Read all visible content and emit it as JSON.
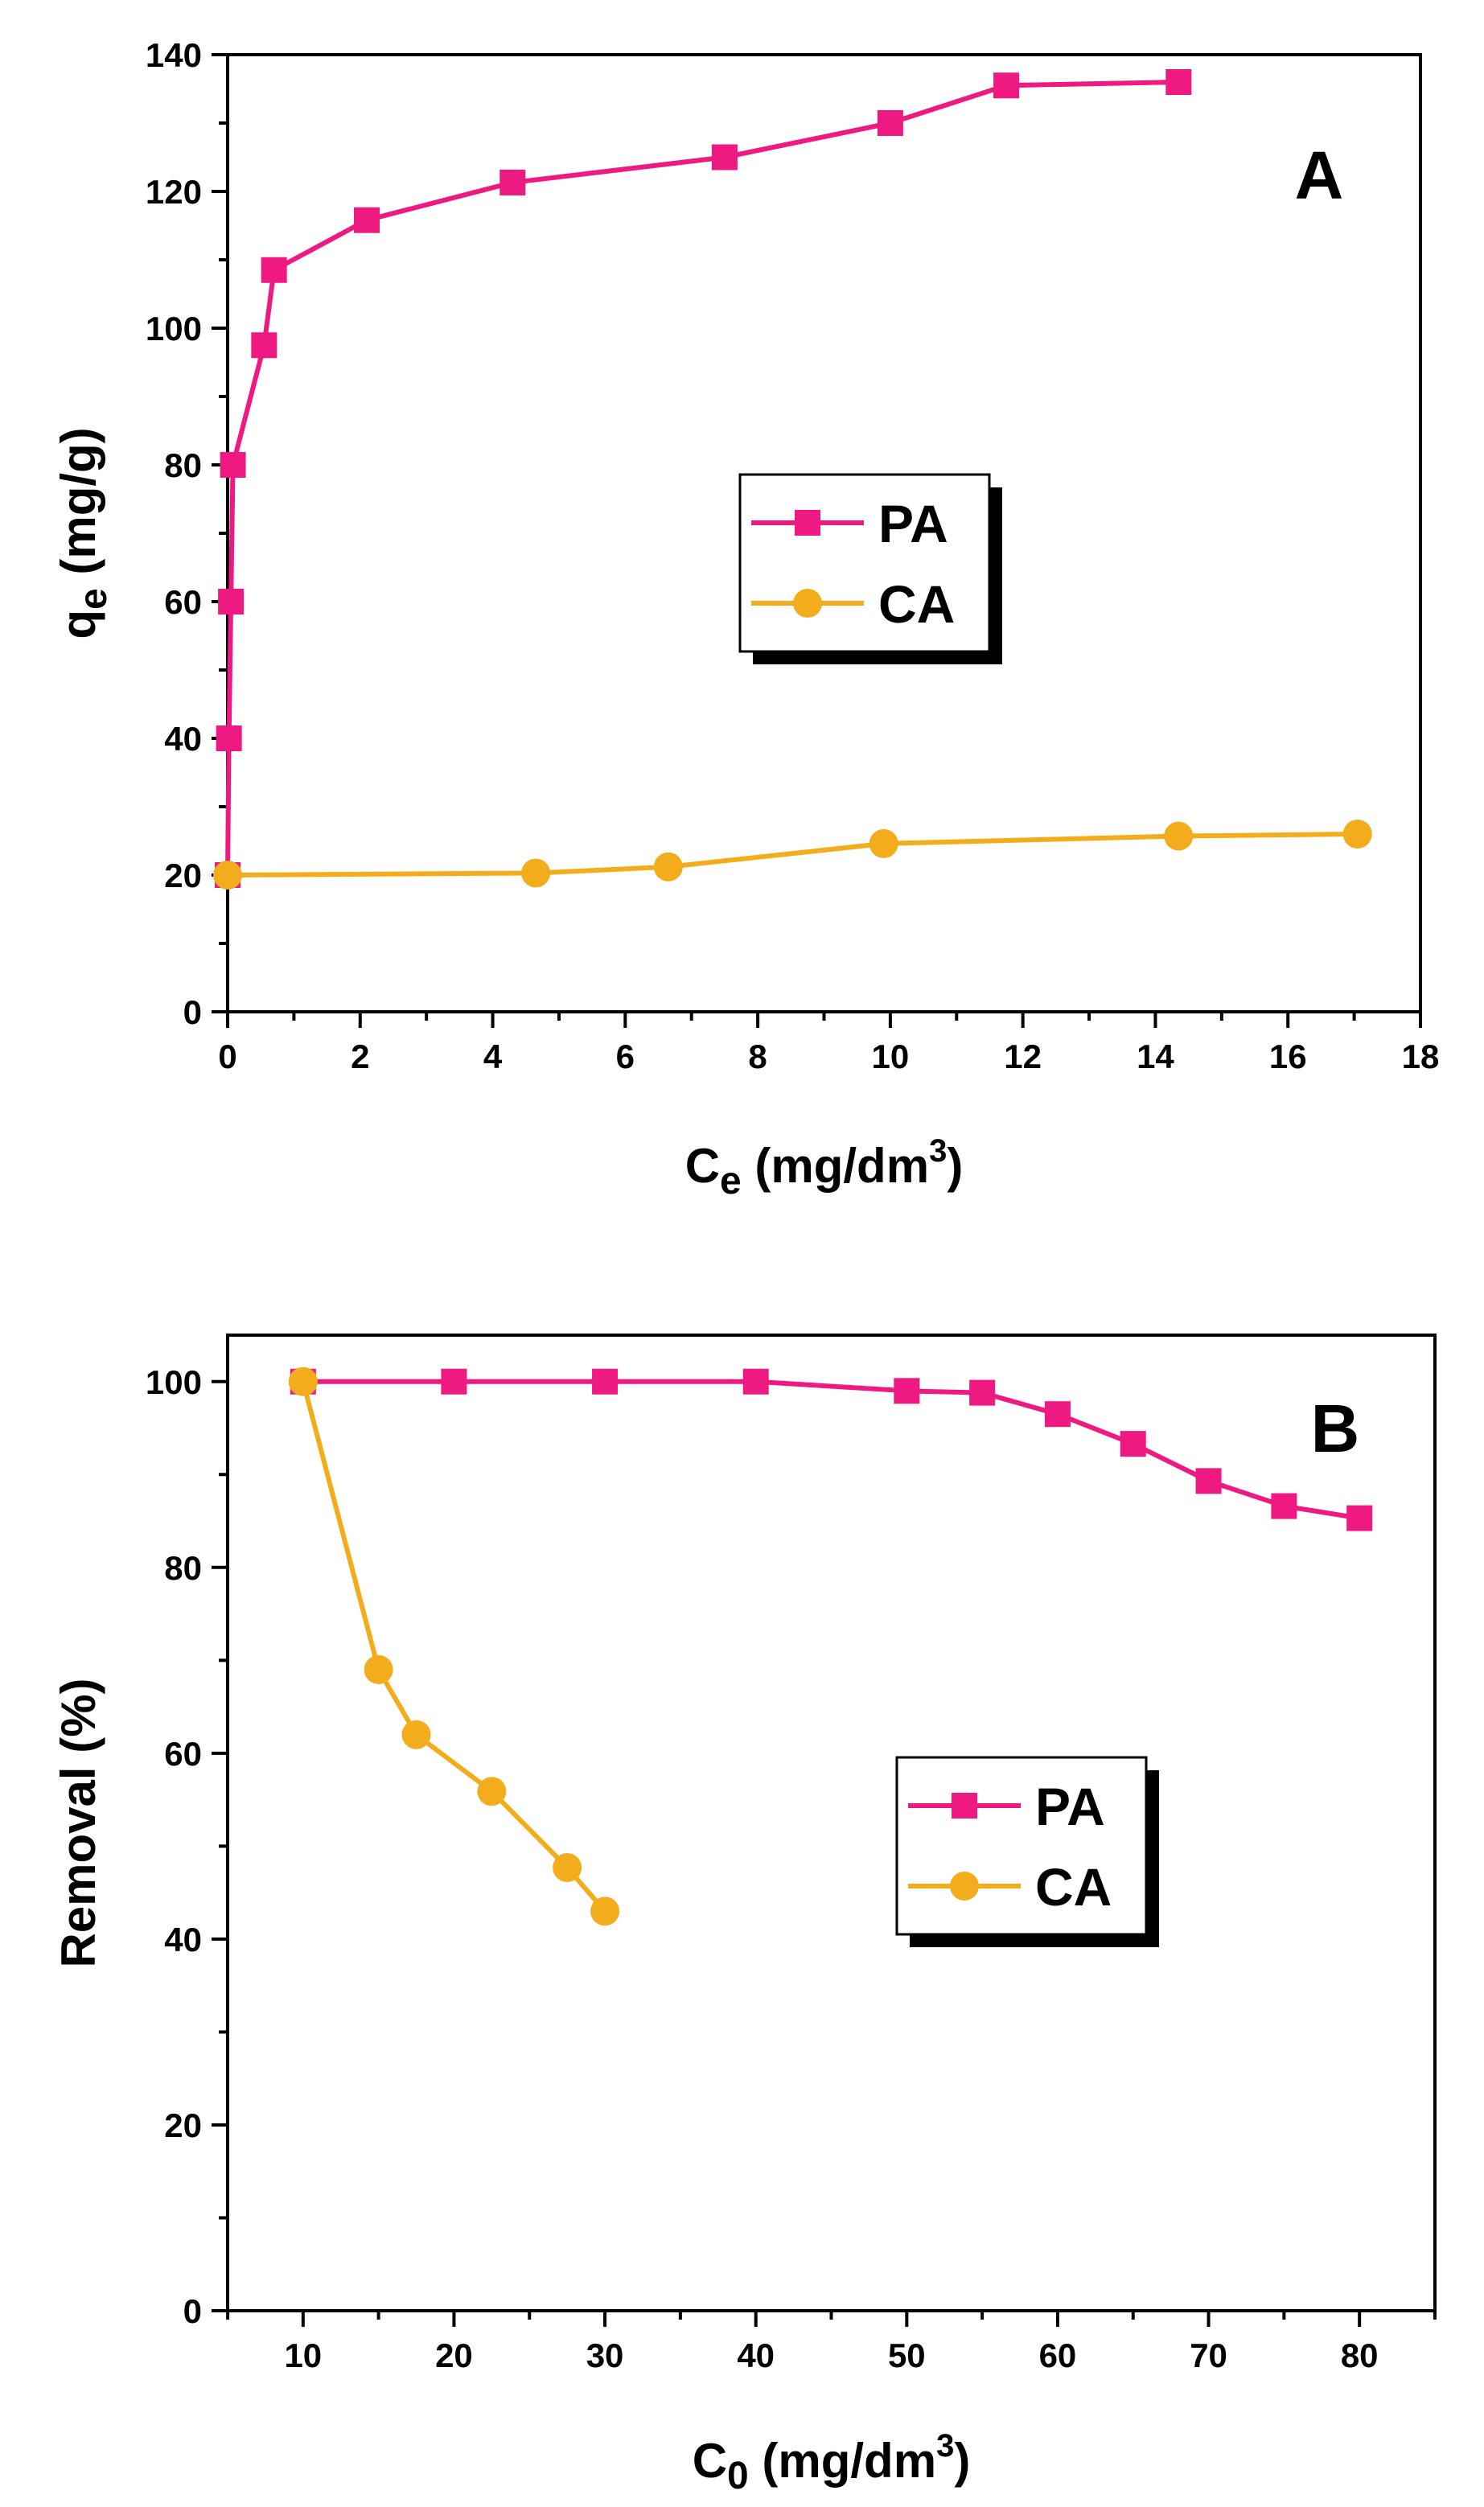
{
  "colors": {
    "PA": "#ee1a82",
    "CA": "#f3ac1c",
    "axis": "#000000"
  },
  "chart_data": [
    {
      "type": "line",
      "panel_label": "A",
      "xlabel": {
        "main": "C",
        "sub": "e",
        "rest": " (mg/dm",
        "sup": "3",
        "end": ")"
      },
      "ylabel": {
        "main": "q",
        "sub": "e",
        "rest": " (mg/g)"
      },
      "xlim": [
        0,
        18
      ],
      "ylim": [
        0,
        140
      ],
      "xticks": [
        "0",
        "2",
        "4",
        "6",
        "8",
        "10",
        "12",
        "14",
        "16",
        "18"
      ],
      "yticks": [
        "0",
        "20",
        "40",
        "60",
        "80",
        "100",
        "120",
        "140"
      ],
      "series": [
        {
          "name": "PA",
          "marker": "square",
          "x": [
            0,
            0.02,
            0.05,
            0.08,
            0.55,
            0.7,
            2.1,
            4.3,
            7.5,
            10,
            11.75,
            14.35
          ],
          "y": [
            20,
            40,
            60,
            80,
            97.5,
            108.5,
            115.8,
            121.3,
            125,
            130,
            135.5,
            136
          ]
        },
        {
          "name": "CA",
          "marker": "circle",
          "x": [
            0,
            4.65,
            6.65,
            9.9,
            14.35,
            17.05
          ],
          "y": [
            20,
            20.3,
            21.2,
            24.6,
            25.7,
            26
          ]
        }
      ],
      "legend": {
        "position": "center"
      }
    },
    {
      "type": "line",
      "panel_label": "B",
      "xlabel": {
        "main": "C",
        "sub": "0",
        "rest": " (mg/dm",
        "sup": "3",
        "end": ")"
      },
      "ylabel": {
        "main": "Removal (%)"
      },
      "xlim": [
        5,
        85
      ],
      "ylim": [
        0,
        105
      ],
      "xticks": [
        "10",
        "20",
        "30",
        "40",
        "50",
        "60",
        "70",
        "80"
      ],
      "yticks": [
        "0",
        "20",
        "40",
        "60",
        "80",
        "100"
      ],
      "series": [
        {
          "name": "PA",
          "marker": "square",
          "x": [
            10,
            20,
            30,
            40,
            50,
            55,
            60,
            65,
            70,
            75,
            80
          ],
          "y": [
            100,
            100,
            100,
            100,
            99,
            98.8,
            96.5,
            93.3,
            89.3,
            86.6,
            85.3
          ]
        },
        {
          "name": "CA",
          "marker": "circle",
          "x": [
            10,
            15,
            17.5,
            22.5,
            27.5,
            30
          ],
          "y": [
            100,
            69,
            62,
            55.9,
            47.7,
            43
          ]
        }
      ],
      "legend": {
        "position": "center-right"
      }
    }
  ]
}
